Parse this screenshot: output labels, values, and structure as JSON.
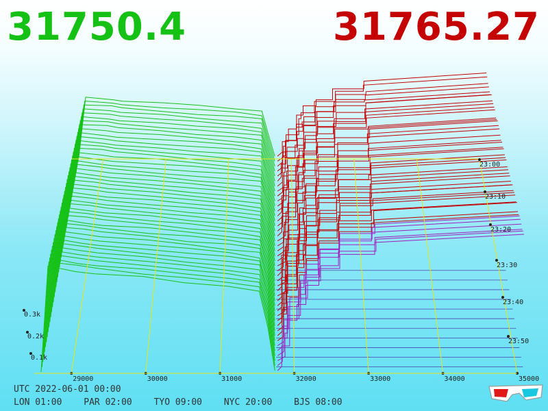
{
  "header": {
    "bid_price": "31750.4",
    "ask_price": "31765.27"
  },
  "footer": {
    "utc_label": "UTC 2022-06-01 00:00",
    "zones": [
      "LON 01:00",
      "PAR 02:00",
      "TYO 09:00",
      "NYC 20:00",
      "BJS 08:00"
    ]
  },
  "colors": {
    "bid": "#16c116",
    "ask": "#c40000",
    "grid": "#e6e61a",
    "baseline": "#3f1f9f"
  },
  "icons": [
    "3d-glasses-icon"
  ],
  "chart_data": {
    "type": "area",
    "title": "",
    "xlabel": "",
    "ylabel": "",
    "x_ticks": [
      "29000",
      "30000",
      "31000",
      "32000",
      "33000",
      "34000",
      "35000"
    ],
    "y_ticks": [
      "0.1k",
      "0.2k",
      "0.3k"
    ],
    "time_ticks": [
      "23:00",
      "23:10",
      "23:20",
      "23:30",
      "23:40",
      "23:50"
    ],
    "x_range": [
      28500,
      35000
    ],
    "mid_price": 31757,
    "series": [
      {
        "side": "bid",
        "price": 31750.4
      },
      {
        "side": "ask",
        "price": 31765.27
      }
    ]
  }
}
